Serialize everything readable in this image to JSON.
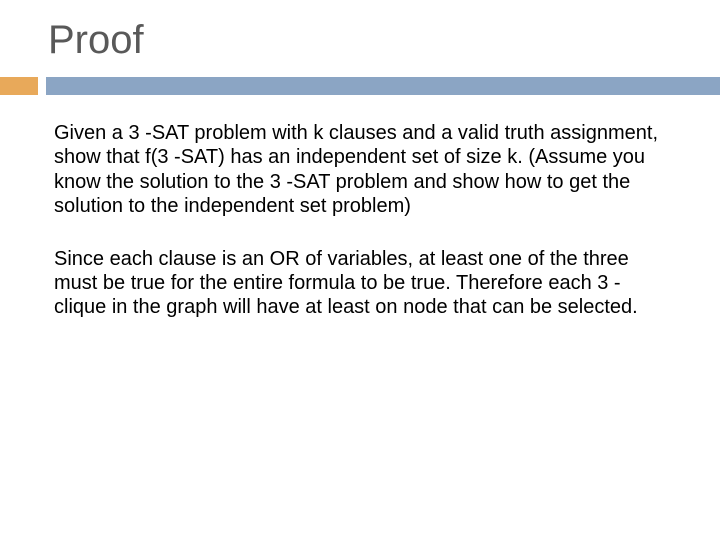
{
  "title": "Proof",
  "title_color": "#595959",
  "title_fontsize": 40,
  "accent_color": "#e8a95a",
  "bar_color": "#8ba5c4",
  "background_color": "#ffffff",
  "body_fontsize": 20,
  "body_color": "#000000",
  "paragraphs": {
    "p1": "Given a 3 -SAT problem with k clauses and a valid truth assignment, show that f(3 -SAT) has an independent set of size k. (Assume you know the solution to the 3 -SAT problem and show how to get the solution to the independent set problem)",
    "p2": "Since each clause is an OR of variables, at least one of the three must be true for the entire formula to be true. Therefore each 3 -clique in the graph will have at least on node that can be selected."
  }
}
